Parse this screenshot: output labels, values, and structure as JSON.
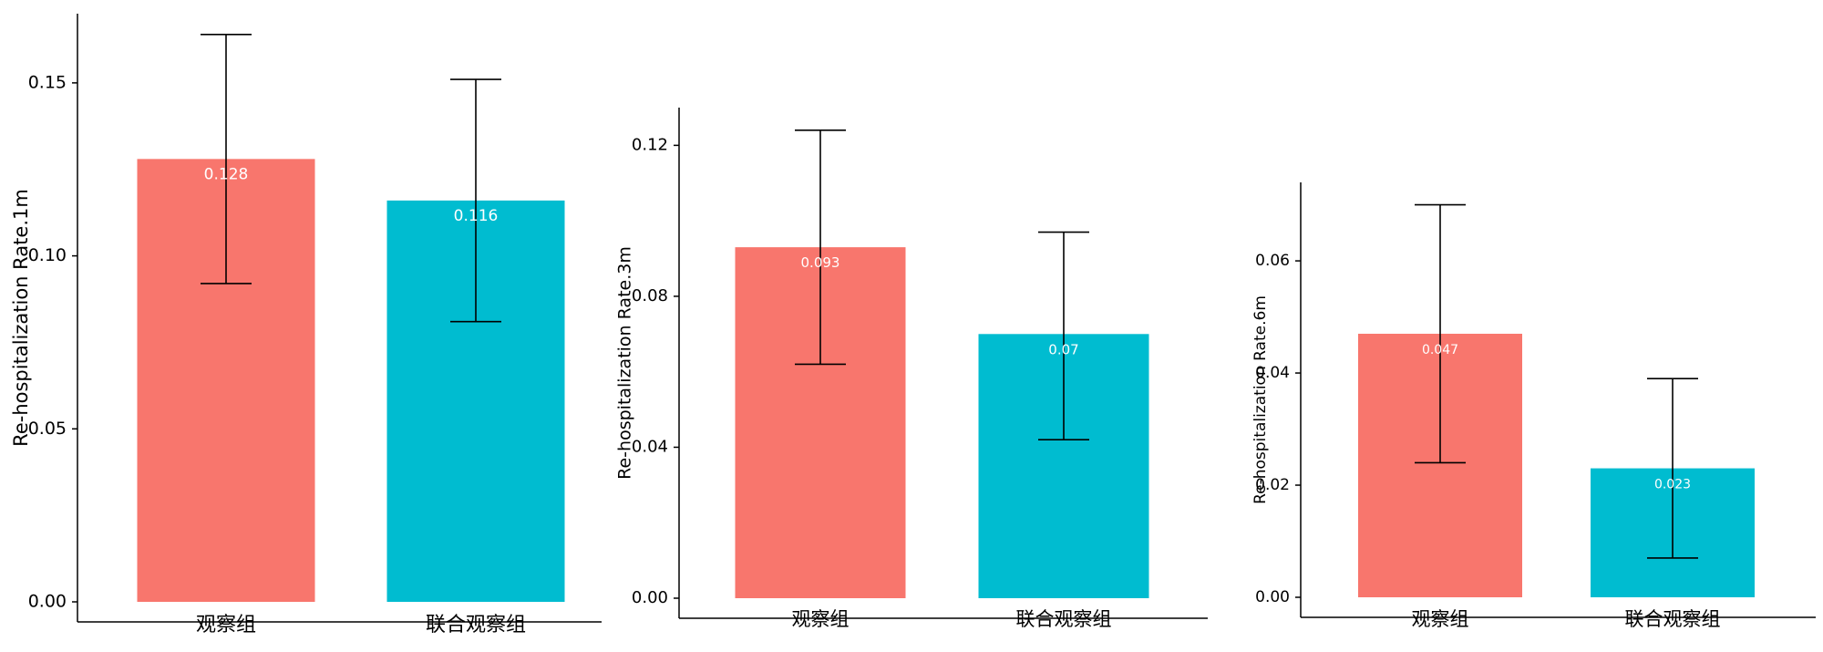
{
  "chart_data": [
    {
      "type": "bar",
      "categories": [
        "观察组",
        "联合观察组"
      ],
      "values": [
        0.128,
        0.116
      ],
      "value_labels": [
        "0.128",
        "0.116"
      ],
      "error_low": [
        0.092,
        0.081
      ],
      "error_high": [
        0.164,
        0.151
      ],
      "ylabel": "Re-hospitalization Rate.1m",
      "ylim": [
        0,
        0.17
      ],
      "yticks": [
        0.0,
        0.05,
        0.1,
        0.15
      ],
      "ytick_labels": [
        "0.00",
        "0.05",
        "0.10",
        "0.15"
      ],
      "colors": [
        "#f8766d",
        "#00bcd0"
      ],
      "grid": false
    },
    {
      "type": "bar",
      "categories": [
        "观察组",
        "联合观察组"
      ],
      "values": [
        0.093,
        0.07
      ],
      "value_labels": [
        "0.093",
        "0.07"
      ],
      "error_low": [
        0.062,
        0.042
      ],
      "error_high": [
        0.124,
        0.097
      ],
      "ylabel": "Re-hospitalization Rate.3m",
      "ylim": [
        0,
        0.13
      ],
      "yticks": [
        0.0,
        0.04,
        0.08,
        0.12
      ],
      "ytick_labels": [
        "0.00",
        "0.04",
        "0.08",
        "0.12"
      ],
      "colors": [
        "#f8766d",
        "#00bcd0"
      ],
      "grid": false
    },
    {
      "type": "bar",
      "categories": [
        "观察组",
        "联合观察组"
      ],
      "values": [
        0.047,
        0.023
      ],
      "value_labels": [
        "0.047",
        "0.023"
      ],
      "error_low": [
        0.024,
        0.007
      ],
      "error_high": [
        0.07,
        0.039
      ],
      "ylabel": "Re-hospitalization Rate.6m",
      "ylim": [
        0,
        0.074
      ],
      "yticks": [
        0.0,
        0.02,
        0.04,
        0.06
      ],
      "ytick_labels": [
        "0.00",
        "0.02",
        "0.04",
        "0.06"
      ],
      "colors": [
        "#f8766d",
        "#00bcd0"
      ],
      "grid": false
    }
  ]
}
